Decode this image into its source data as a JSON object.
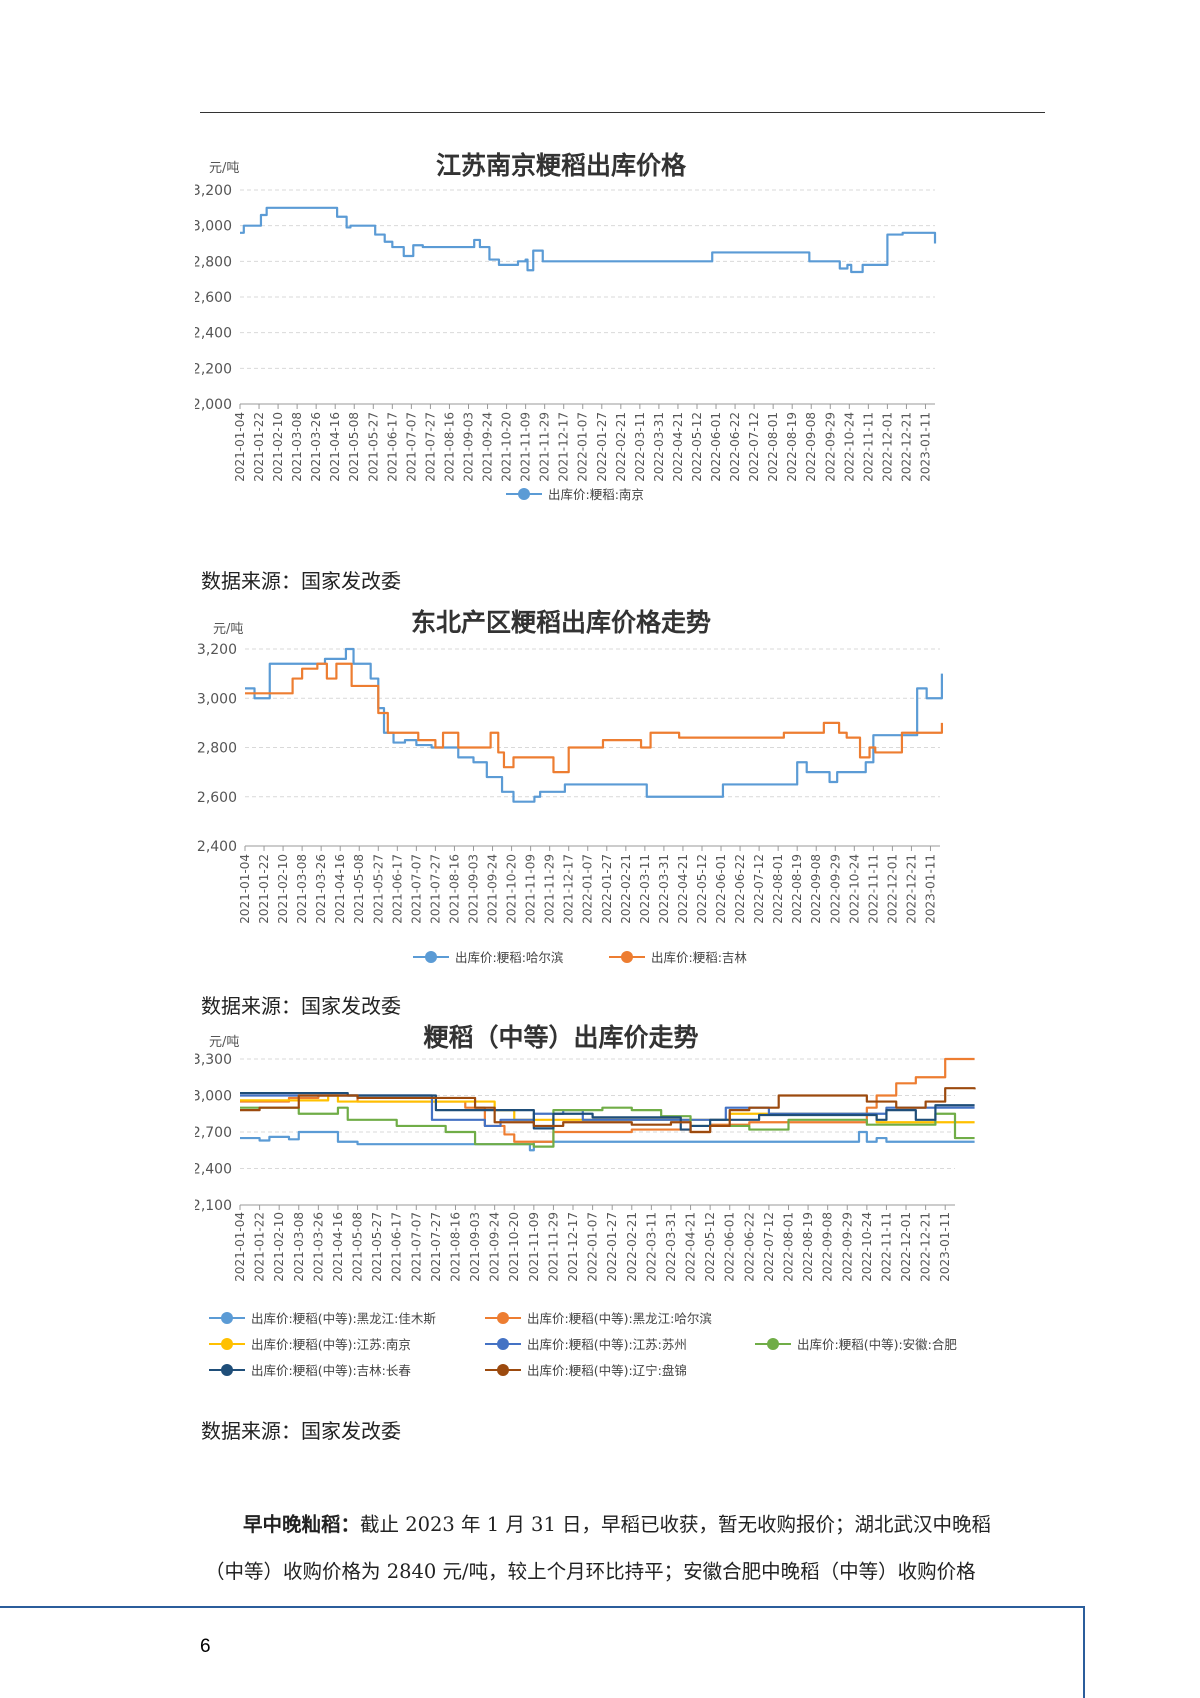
{
  "page_number": "6",
  "charts_text": {
    "c1": {
      "title": "江苏南京粳稻出库价格",
      "unit": "元/吨",
      "legend": [
        "出库价:粳稻:南京"
      ]
    },
    "c2": {
      "title": "东北产区粳稻出库价格走势",
      "unit": "元/吨",
      "legend": [
        "出库价:粳稻:哈尔滨",
        "出库价:粳稻:吉林"
      ]
    },
    "c3": {
      "title": "粳稻（中等）出库价走势",
      "unit": "元/吨",
      "legend": [
        "出库价:粳稻(中等):黑龙江:佳木斯",
        "出库价:粳稻(中等):黑龙江:哈尔滨",
        "出库价:粳稻(中等):江苏:南京",
        "出库价:粳稻(中等):江苏:苏州",
        "出库价:粳稻(中等):安徽:合肥",
        "出库价:粳稻(中等):吉林:长春",
        "出库价:粳稻(中等):辽宁:盘锦"
      ]
    }
  },
  "sources": [
    "数据来源：国家发改委",
    "数据来源：国家发改委",
    "数据来源：国家发改委"
  ],
  "paragraph": {
    "bold": "早中晚籼稻：",
    "line1": "截止 2023 年 1 月 31 日，早稻已收获，暂无收购报价；湖北武汉中晚稻",
    "line2": "（中等）收购价格为 2840 元/吨，较上个月环比持平；安徽合肥中晚稻（中等）收购价格"
  },
  "chart_data": [
    {
      "type": "line",
      "title": "江苏南京粳稻出库价格",
      "ylabel": "元/吨",
      "ylim": [
        2000,
        3200
      ],
      "yticks": [
        2000,
        2200,
        2400,
        2600,
        2800,
        3000,
        3200
      ],
      "categories": [
        "2021-01-04",
        "2021-01-22",
        "2021-02-10",
        "2021-03-08",
        "2021-03-26",
        "2021-04-16",
        "2021-05-08",
        "2021-05-27",
        "2021-06-17",
        "2021-07-07",
        "2021-07-27",
        "2021-08-16",
        "2021-09-03",
        "2021-09-24",
        "2021-10-20",
        "2021-11-09",
        "2021-11-29",
        "2021-12-17",
        "2022-01-07",
        "2022-01-27",
        "2022-02-21",
        "2022-03-11",
        "2022-03-31",
        "2022-04-21",
        "2022-05-12",
        "2022-06-01",
        "2022-06-22",
        "2022-07-12",
        "2022-08-01",
        "2022-08-19",
        "2022-09-08",
        "2022-09-29",
        "2022-10-24",
        "2022-11-11",
        "2022-12-01",
        "2022-12-21",
        "2023-01-11"
      ],
      "grid": true,
      "legend_position": "bottom",
      "series": [
        {
          "name": "出库价:粳稻:南京",
          "color": "#5b9bd5",
          "x": [
            0,
            0.2,
            0.9,
            1.1,
            1.4,
            1.6,
            4.6,
            5.1,
            5.6,
            5.8,
            6.8,
            7.1,
            7.6,
            8.0,
            8.6,
            9.1,
            9.6,
            12.0,
            12.3,
            12.6,
            13.1,
            13.6,
            13.9,
            14.6,
            15.0,
            15.1,
            15.4,
            15.9,
            23.5,
            24.8,
            29.5,
            29.9,
            30.6,
            31.5,
            31.9,
            32.1,
            32.7,
            34.0,
            34.8,
            36.5
          ],
          "values": [
            2960,
            3000,
            3000,
            3060,
            3100,
            3100,
            3100,
            3050,
            2990,
            3000,
            3000,
            2950,
            2910,
            2880,
            2830,
            2890,
            2880,
            2880,
            2920,
            2880,
            2810,
            2780,
            2780,
            2800,
            2810,
            2750,
            2860,
            2800,
            2800,
            2850,
            2850,
            2800,
            2800,
            2760,
            2780,
            2740,
            2780,
            2950,
            2960,
            2900
          ]
        }
      ]
    },
    {
      "type": "line",
      "title": "东北产区粳稻出库价格走势",
      "ylabel": "元/吨",
      "ylim": [
        2400,
        3200
      ],
      "yticks": [
        2400,
        2600,
        2800,
        3000,
        3200
      ],
      "categories": [
        "2021-01-04",
        "2021-01-22",
        "2021-02-10",
        "2021-03-08",
        "2021-03-26",
        "2021-04-16",
        "2021-05-08",
        "2021-05-27",
        "2021-06-17",
        "2021-07-07",
        "2021-07-27",
        "2021-08-16",
        "2021-09-03",
        "2021-09-24",
        "2021-10-20",
        "2021-11-09",
        "2021-11-29",
        "2021-12-17",
        "2022-01-07",
        "2022-01-27",
        "2022-02-21",
        "2022-03-11",
        "2022-03-31",
        "2022-04-21",
        "2022-05-12",
        "2022-06-01",
        "2022-06-22",
        "2022-07-12",
        "2022-08-01",
        "2022-08-19",
        "2022-09-08",
        "2022-09-29",
        "2022-10-24",
        "2022-11-11",
        "2022-12-01",
        "2022-12-21",
        "2023-01-11"
      ],
      "grid": true,
      "legend_position": "bottom",
      "series": [
        {
          "name": "出库价:粳稻:哈尔滨",
          "color": "#5b9bd5",
          "x": [
            0,
            0.5,
            1.0,
            1.3,
            3.2,
            4.2,
            5.0,
            5.3,
            5.7,
            6.3,
            6.6,
            7.0,
            7.3,
            7.8,
            8.4,
            9.0,
            9.8,
            10.6,
            11.2,
            12.0,
            12.7,
            13.5,
            14.1,
            15.2,
            15.5,
            16.1,
            16.8,
            20.2,
            21.1,
            23.6,
            25.1,
            29.0,
            29.5,
            30.7,
            31.1,
            32.3,
            32.6,
            33.0,
            33.6,
            35.3,
            35.8,
            36.6
          ],
          "values": [
            3040,
            3000,
            3000,
            3140,
            3140,
            3160,
            3160,
            3200,
            3140,
            3140,
            3080,
            2960,
            2860,
            2820,
            2830,
            2810,
            2800,
            2800,
            2760,
            2740,
            2680,
            2620,
            2580,
            2600,
            2620,
            2620,
            2650,
            2650,
            2600,
            2600,
            2650,
            2740,
            2700,
            2660,
            2700,
            2700,
            2740,
            2850,
            2850,
            3040,
            3000,
            3100
          ]
        },
        {
          "name": "出库价:粳稻:吉林",
          "color": "#ed7d31",
          "x": [
            0,
            2.0,
            2.5,
            3.0,
            3.8,
            4.3,
            4.8,
            5.6,
            6.6,
            7.0,
            7.5,
            8.4,
            9.1,
            10.0,
            10.4,
            11.2,
            12.0,
            12.6,
            12.9,
            13.3,
            13.6,
            14.1,
            15.9,
            16.2,
            17.0,
            18.6,
            18.8,
            20.8,
            21.3,
            22.8,
            28.0,
            28.3,
            30.4,
            31.2,
            31.6,
            32.3,
            32.8,
            33.1,
            34.5,
            35.6,
            36.6
          ],
          "values": [
            3020,
            3020,
            3080,
            3120,
            3140,
            3080,
            3140,
            3050,
            3050,
            2940,
            2860,
            2860,
            2830,
            2800,
            2860,
            2800,
            2800,
            2800,
            2860,
            2780,
            2720,
            2760,
            2760,
            2700,
            2800,
            2800,
            2830,
            2800,
            2860,
            2840,
            2840,
            2860,
            2900,
            2860,
            2840,
            2760,
            2800,
            2780,
            2860,
            2860,
            2900
          ]
        }
      ]
    },
    {
      "type": "line",
      "title": "粳稻（中等）出库价走势",
      "ylabel": "元/吨",
      "ylim": [
        2100,
        3300
      ],
      "yticks": [
        2100,
        2400,
        2700,
        3000,
        3300
      ],
      "categories": [
        "2021-01-04",
        "2021-01-22",
        "2021-02-10",
        "2021-03-08",
        "2021-03-26",
        "2021-04-16",
        "2021-05-08",
        "2021-05-27",
        "2021-06-17",
        "2021-07-07",
        "2021-07-27",
        "2021-08-16",
        "2021-09-03",
        "2021-09-24",
        "2021-10-20",
        "2021-11-09",
        "2021-11-29",
        "2021-12-17",
        "2022-01-07",
        "2022-01-27",
        "2022-02-21",
        "2022-03-11",
        "2022-03-31",
        "2022-04-21",
        "2022-05-12",
        "2022-06-01",
        "2022-06-22",
        "2022-07-12",
        "2022-08-01",
        "2022-08-19",
        "2022-09-08",
        "2022-09-29",
        "2022-10-24",
        "2022-11-11",
        "2022-12-01",
        "2022-12-21",
        "2023-01-11"
      ],
      "grid": true,
      "legend_position": "bottom",
      "series": [
        {
          "name": "出库价:粳稻(中等):黑龙江:佳木斯",
          "color": "#5b9bd5",
          "x": [
            0,
            1.0,
            1.5,
            2.5,
            3.0,
            4.5,
            5.0,
            6.0,
            14.5,
            14.8,
            15.0,
            28.0,
            31.0,
            31.6,
            32.0,
            32.5,
            33.0,
            37.5
          ],
          "values": [
            2650,
            2630,
            2660,
            2640,
            2700,
            2700,
            2620,
            2600,
            2600,
            2550,
            2620,
            2620,
            2620,
            2700,
            2620,
            2650,
            2620,
            2620
          ]
        },
        {
          "name": "出库价:粳稻(中等):黑龙江:哈尔滨",
          "color": "#ed7d31",
          "x": [
            0,
            2.5,
            4.0,
            6.0,
            11.5,
            12.5,
            13.5,
            14.0,
            16.0,
            20.0,
            23.0,
            24.0,
            26.0,
            30.0,
            32.0,
            32.5,
            33.5,
            34.5,
            36.0,
            37.5
          ],
          "values": [
            2950,
            2980,
            3000,
            2950,
            2900,
            2750,
            2680,
            2620,
            2700,
            2720,
            2700,
            2760,
            2780,
            2780,
            2900,
            3000,
            3100,
            3150,
            3300,
            3300
          ]
        },
        {
          "name": "出库价:粳稻(中等):江苏:南京",
          "color": "#ffc000",
          "x": [
            0,
            4.5,
            5.0,
            12.0,
            13.0,
            14.0,
            16.0,
            24.0,
            25.0,
            31.5,
            32.5,
            37.5
          ],
          "values": [
            2960,
            3000,
            2950,
            2950,
            2880,
            2800,
            2800,
            2800,
            2850,
            2850,
            2780,
            2780
          ]
        },
        {
          "name": "出库价:粳稻(中等):江苏:苏州",
          "color": "#4472c4",
          "x": [
            0,
            6.0,
            9.3,
            9.8,
            11.0,
            12.5,
            13.3,
            15.0,
            16.5,
            17.5,
            24.0,
            24.8,
            27.0,
            32.0,
            33.0,
            37.5
          ],
          "values": [
            3000,
            3000,
            3000,
            2800,
            2800,
            2750,
            2800,
            2850,
            2880,
            2800,
            2800,
            2900,
            2850,
            2850,
            2900,
            2900
          ]
        },
        {
          "name": "出库价:粳稻(中等):安徽:合肥",
          "color": "#70ad47",
          "x": [
            0,
            2.5,
            3.0,
            5.0,
            5.5,
            6.5,
            8.0,
            10.5,
            12.0,
            13.5,
            15.0,
            16.0,
            18.5,
            20.0,
            21.5,
            23.0,
            26.0,
            28.0,
            31.0,
            32.0,
            35.0,
            35.5,
            36.5,
            37.5
          ],
          "values": [
            2900,
            2900,
            2850,
            2900,
            2800,
            2800,
            2750,
            2700,
            2600,
            2600,
            2580,
            2880,
            2900,
            2880,
            2830,
            2750,
            2720,
            2800,
            2800,
            2760,
            2760,
            2850,
            2650,
            2650
          ]
        },
        {
          "name": "出库价:粳稻(中等):吉林:长春",
          "color": "#1f4e79",
          "x": [
            0,
            4.0,
            5.5,
            9.0,
            10.0,
            13.5,
            15.0,
            16.0,
            18.0,
            21.0,
            22.5,
            23.0,
            24.0,
            26.5,
            31.0,
            32.5,
            33.0,
            34.5,
            35.5,
            37.5
          ],
          "values": [
            3020,
            3020,
            3000,
            3000,
            2880,
            2880,
            2730,
            2850,
            2820,
            2820,
            2720,
            2750,
            2800,
            2840,
            2840,
            2800,
            2880,
            2800,
            2920,
            2920
          ]
        },
        {
          "name": "出库价:粳稻(中等):辽宁:盘锦",
          "color": "#9c4a0e",
          "x": [
            0,
            0.5,
            1.0,
            3.0,
            6.0,
            12.0,
            13.0,
            15.0,
            16.5,
            18.0,
            20.0,
            22.0,
            23.0,
            24.0,
            25.0,
            26.0,
            27.5,
            30.0,
            32.0,
            33.5,
            35.0,
            36.0,
            37.5
          ],
          "values": [
            2880,
            2880,
            2900,
            3000,
            2980,
            2900,
            2780,
            2750,
            2780,
            2780,
            2760,
            2780,
            2700,
            2750,
            2880,
            2900,
            3000,
            3000,
            2950,
            2900,
            2950,
            3060,
            3050
          ]
        }
      ]
    }
  ]
}
